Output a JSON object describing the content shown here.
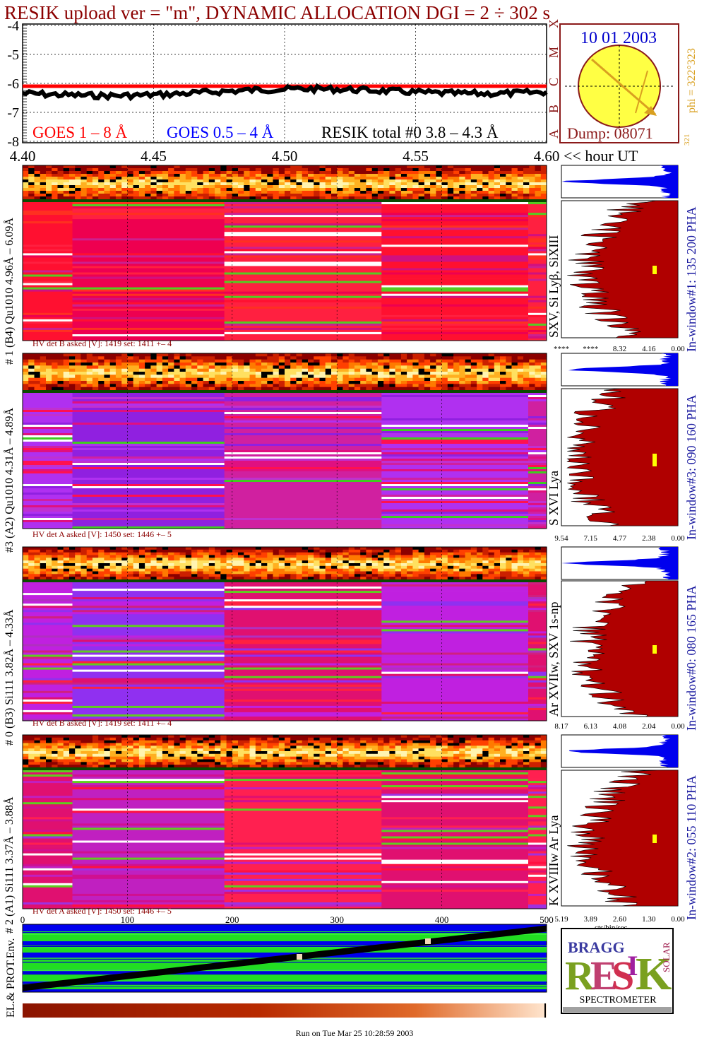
{
  "header": {
    "title": "RESIK upload ver = \"m\", DYNAMIC ALLOCATION  DGI =   2 ÷ 302 s"
  },
  "goes_panel": {
    "yticks": [
      "-4",
      "-5",
      "-6",
      "-7",
      "-8"
    ],
    "xticks": [
      "4.40",
      "4.45",
      "4.50",
      "4.55",
      "4.60"
    ],
    "x_unit": "<< hour UT",
    "class_letters": [
      "X",
      "M",
      "C",
      "B",
      "A"
    ],
    "legend": {
      "goes_long": "GOES 1 – 8 Å",
      "goes_short": "GOES 0.5 – 4 Å",
      "resik_total": "RESIK total #0  3.8 – 4.3 Å"
    },
    "colors": {
      "goes_long": "#ff0000",
      "goes_short": "#0000ff",
      "resik_total": "#000000"
    }
  },
  "sun_panel": {
    "date": "10 01 2003",
    "dump": "Dump: 08071",
    "phi": "phi = 322°323",
    "phi_small": "321",
    "sun_color": "#ffff44"
  },
  "channels": [
    {
      "label": "# 1 (B4) Qu1010 4.96Å – 6.09Å",
      "right_label": "SXV, Si Lyβ, SiXIII",
      "window": "In-window#1:  135 200 PHA",
      "hv": "HV det B asked [V]:  1419 set:  1411 +–   4",
      "pha_ticks": [
        "****",
        "****",
        "8.32",
        "4.16",
        "0.00"
      ]
    },
    {
      "label": "#3 (A2) Qu1010  4.31Å – 4.89Å",
      "right_label": "S XVI Lya",
      "window": "In-window#3:  090 160 PHA",
      "hv": "HV det A asked [V]:  1450 set:  1446 +–   5",
      "pha_ticks": [
        "9.54",
        "7.15",
        "4.77",
        "2.38",
        "0.00"
      ]
    },
    {
      "label": "# 0 (B3) Si111  3.82Å – 4.33Å",
      "right_label": "Ar XVIIw,  SXV 1s-np",
      "window": "In-window#0:  080 165 PHA",
      "hv": "HV det B asked [V]:  1419 set:  1411 +–   4",
      "pha_ticks": [
        "8.17",
        "6.13",
        "4.08",
        "2.04",
        "0.00"
      ]
    },
    {
      "label": "# 2 (A1) Si111  3.37Å – 3.88Å",
      "right_label": "K XVIIIw  Ar Lya",
      "window": "In-window#2:  055 110 PHA",
      "hv": "HV det A asked [V]:  1450 set:  1446 +–   5",
      "pha_ticks": [
        "5.19",
        "3.89",
        "2.60",
        "1.30",
        "0.00"
      ],
      "pha_unit": "cts/bin/sec"
    }
  ],
  "bottom": {
    "xticks": [
      "0",
      "100",
      "200",
      "300",
      "400",
      "500"
    ],
    "env_label": "EL.& PROT.Env.",
    "footer": "Run on Tue Mar 25 10:28:59 2003"
  },
  "logo": {
    "letters_big": "RESIK",
    "letters_small": "BRAGG",
    "solar": "SOLAR",
    "spectrometer": "SPECTROMETER"
  }
}
